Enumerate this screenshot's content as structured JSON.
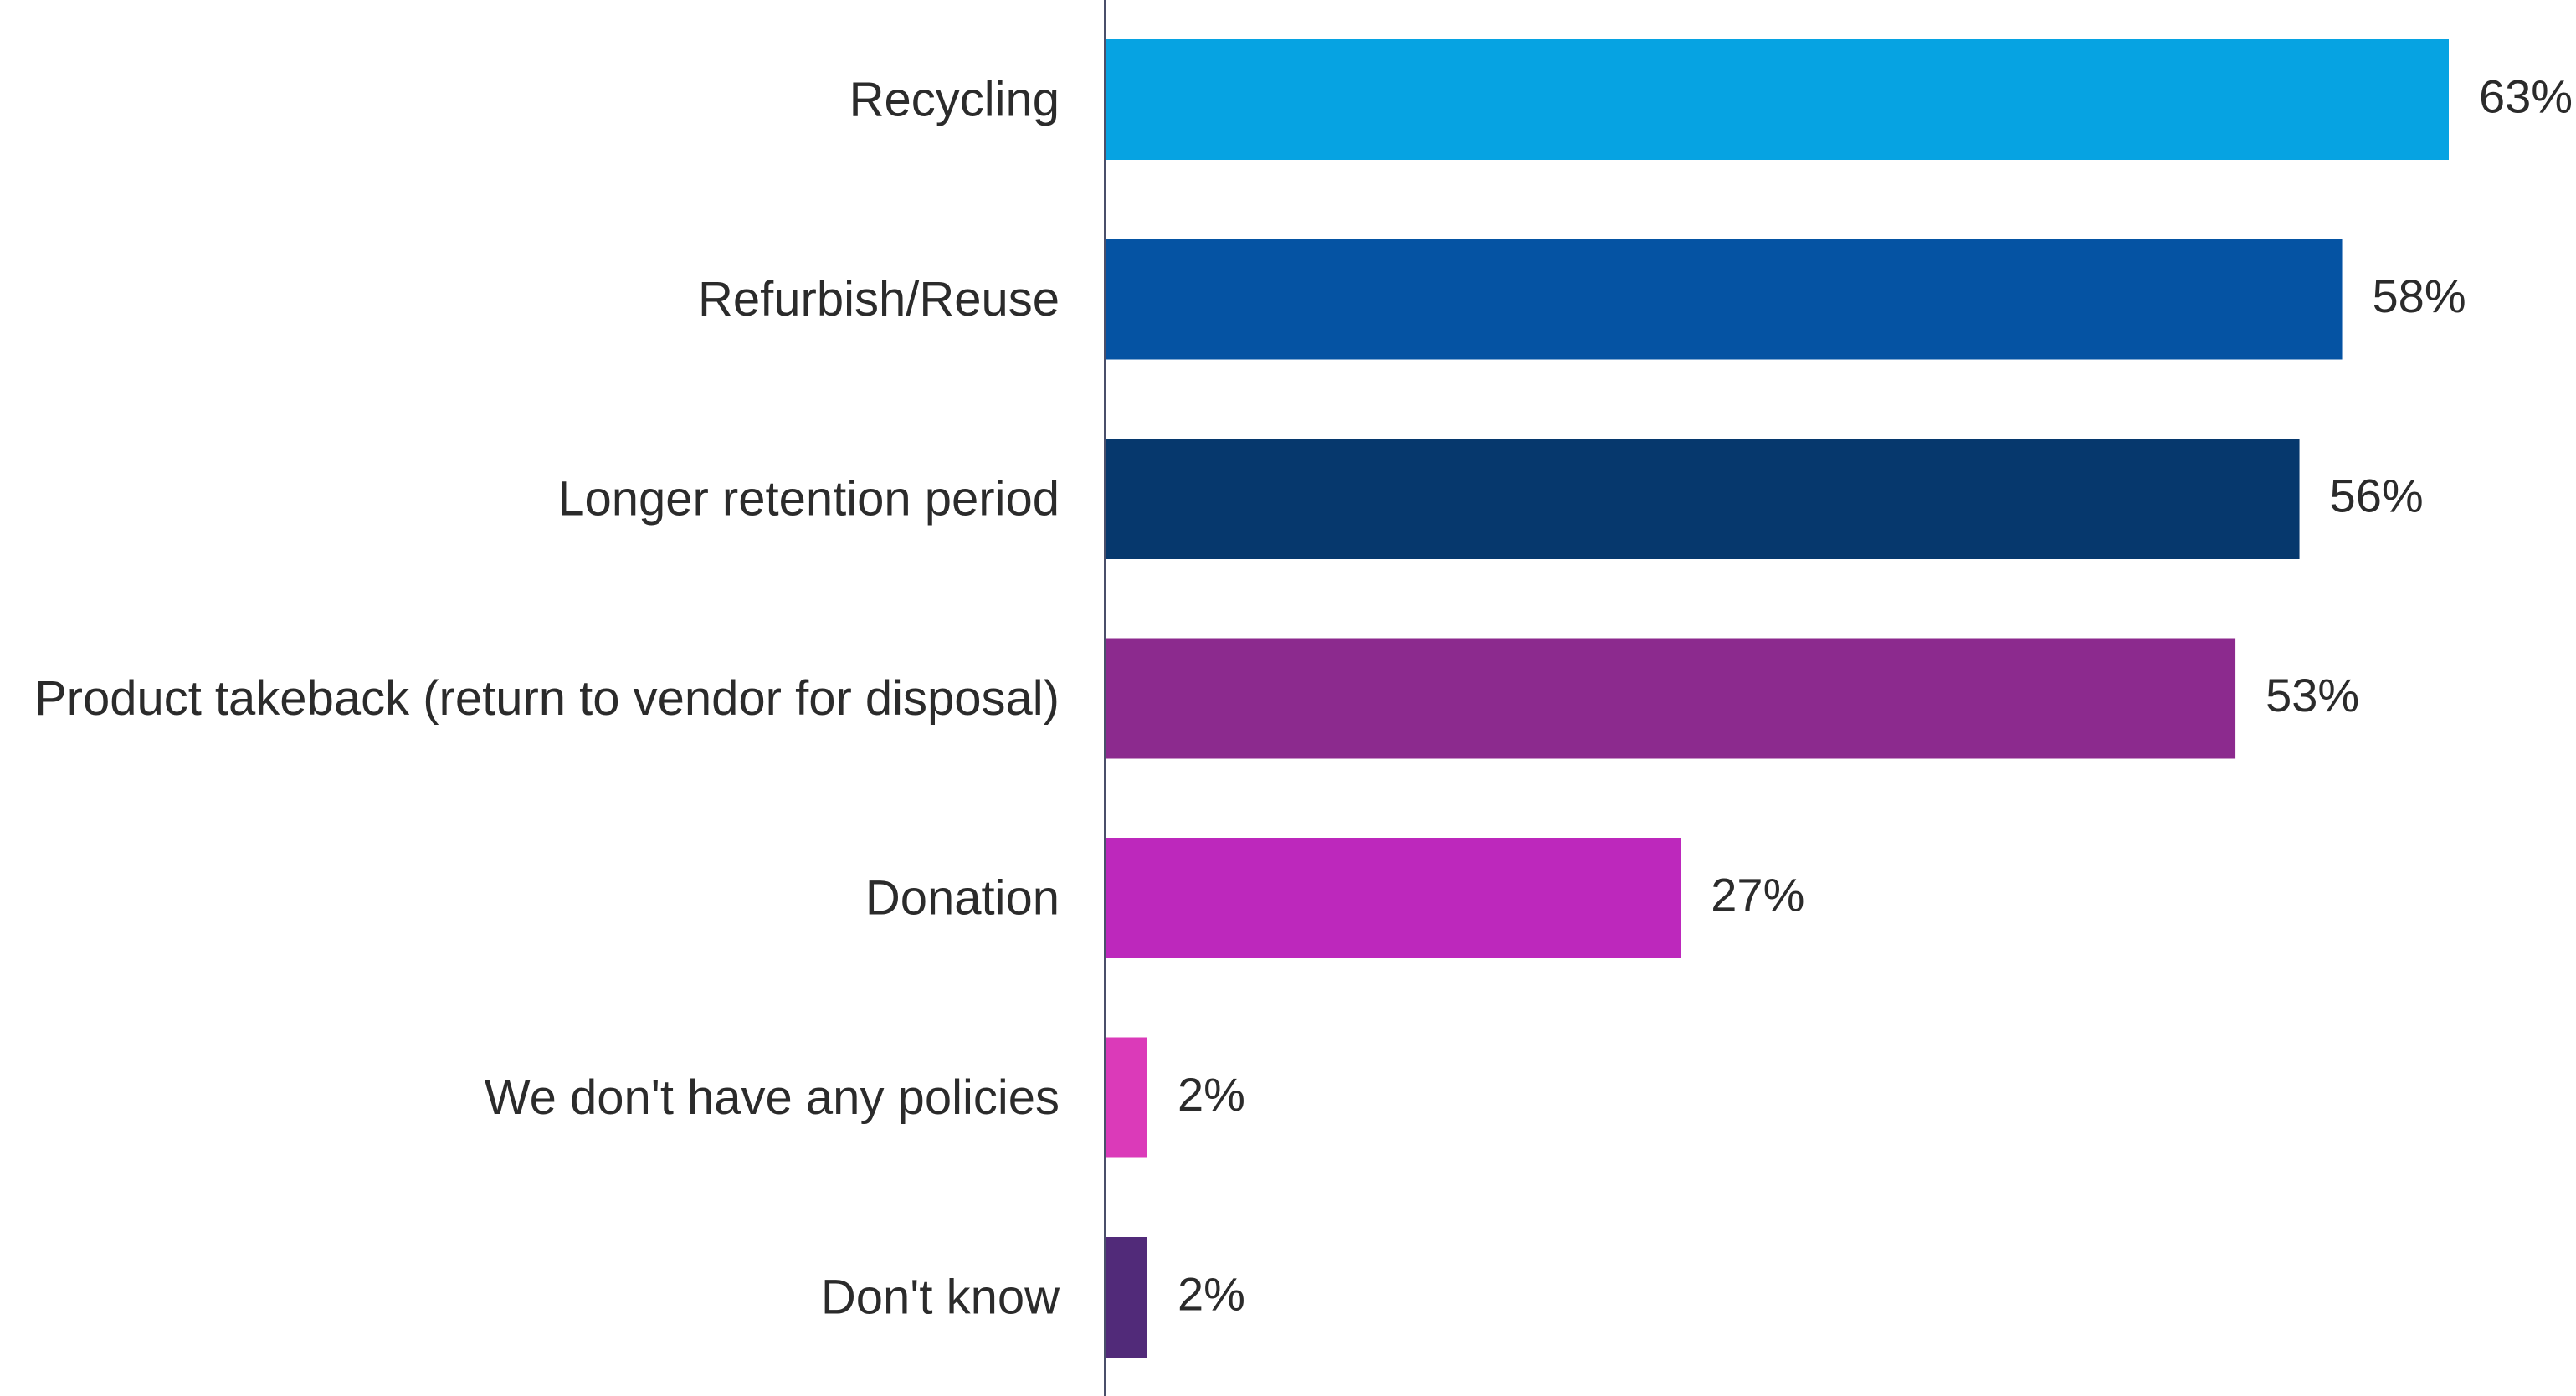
{
  "chart_data": {
    "type": "bar",
    "orientation": "horizontal",
    "title": "",
    "xlabel": "",
    "ylabel": "",
    "xlim": [
      0,
      63
    ],
    "grid": false,
    "legend": "none",
    "categories": [
      "Recycling",
      "Refurbish/Reuse",
      "Longer retention period",
      "Product takeback (return to vendor for disposal)",
      "Donation",
      "We don't have any policies",
      "Don't know"
    ],
    "values": [
      63,
      58,
      56,
      53,
      27,
      2,
      2
    ],
    "value_labels": [
      "63%",
      "58%",
      "56%",
      "53%",
      "27%",
      "2%",
      "2%"
    ],
    "colors": [
      "#06A3E2",
      "#0553A3",
      "#06386D",
      "#8C2A8E",
      "#BD28BC",
      "#DB3AB9",
      "#512A79"
    ],
    "axis_color": "#4a4f6a"
  }
}
